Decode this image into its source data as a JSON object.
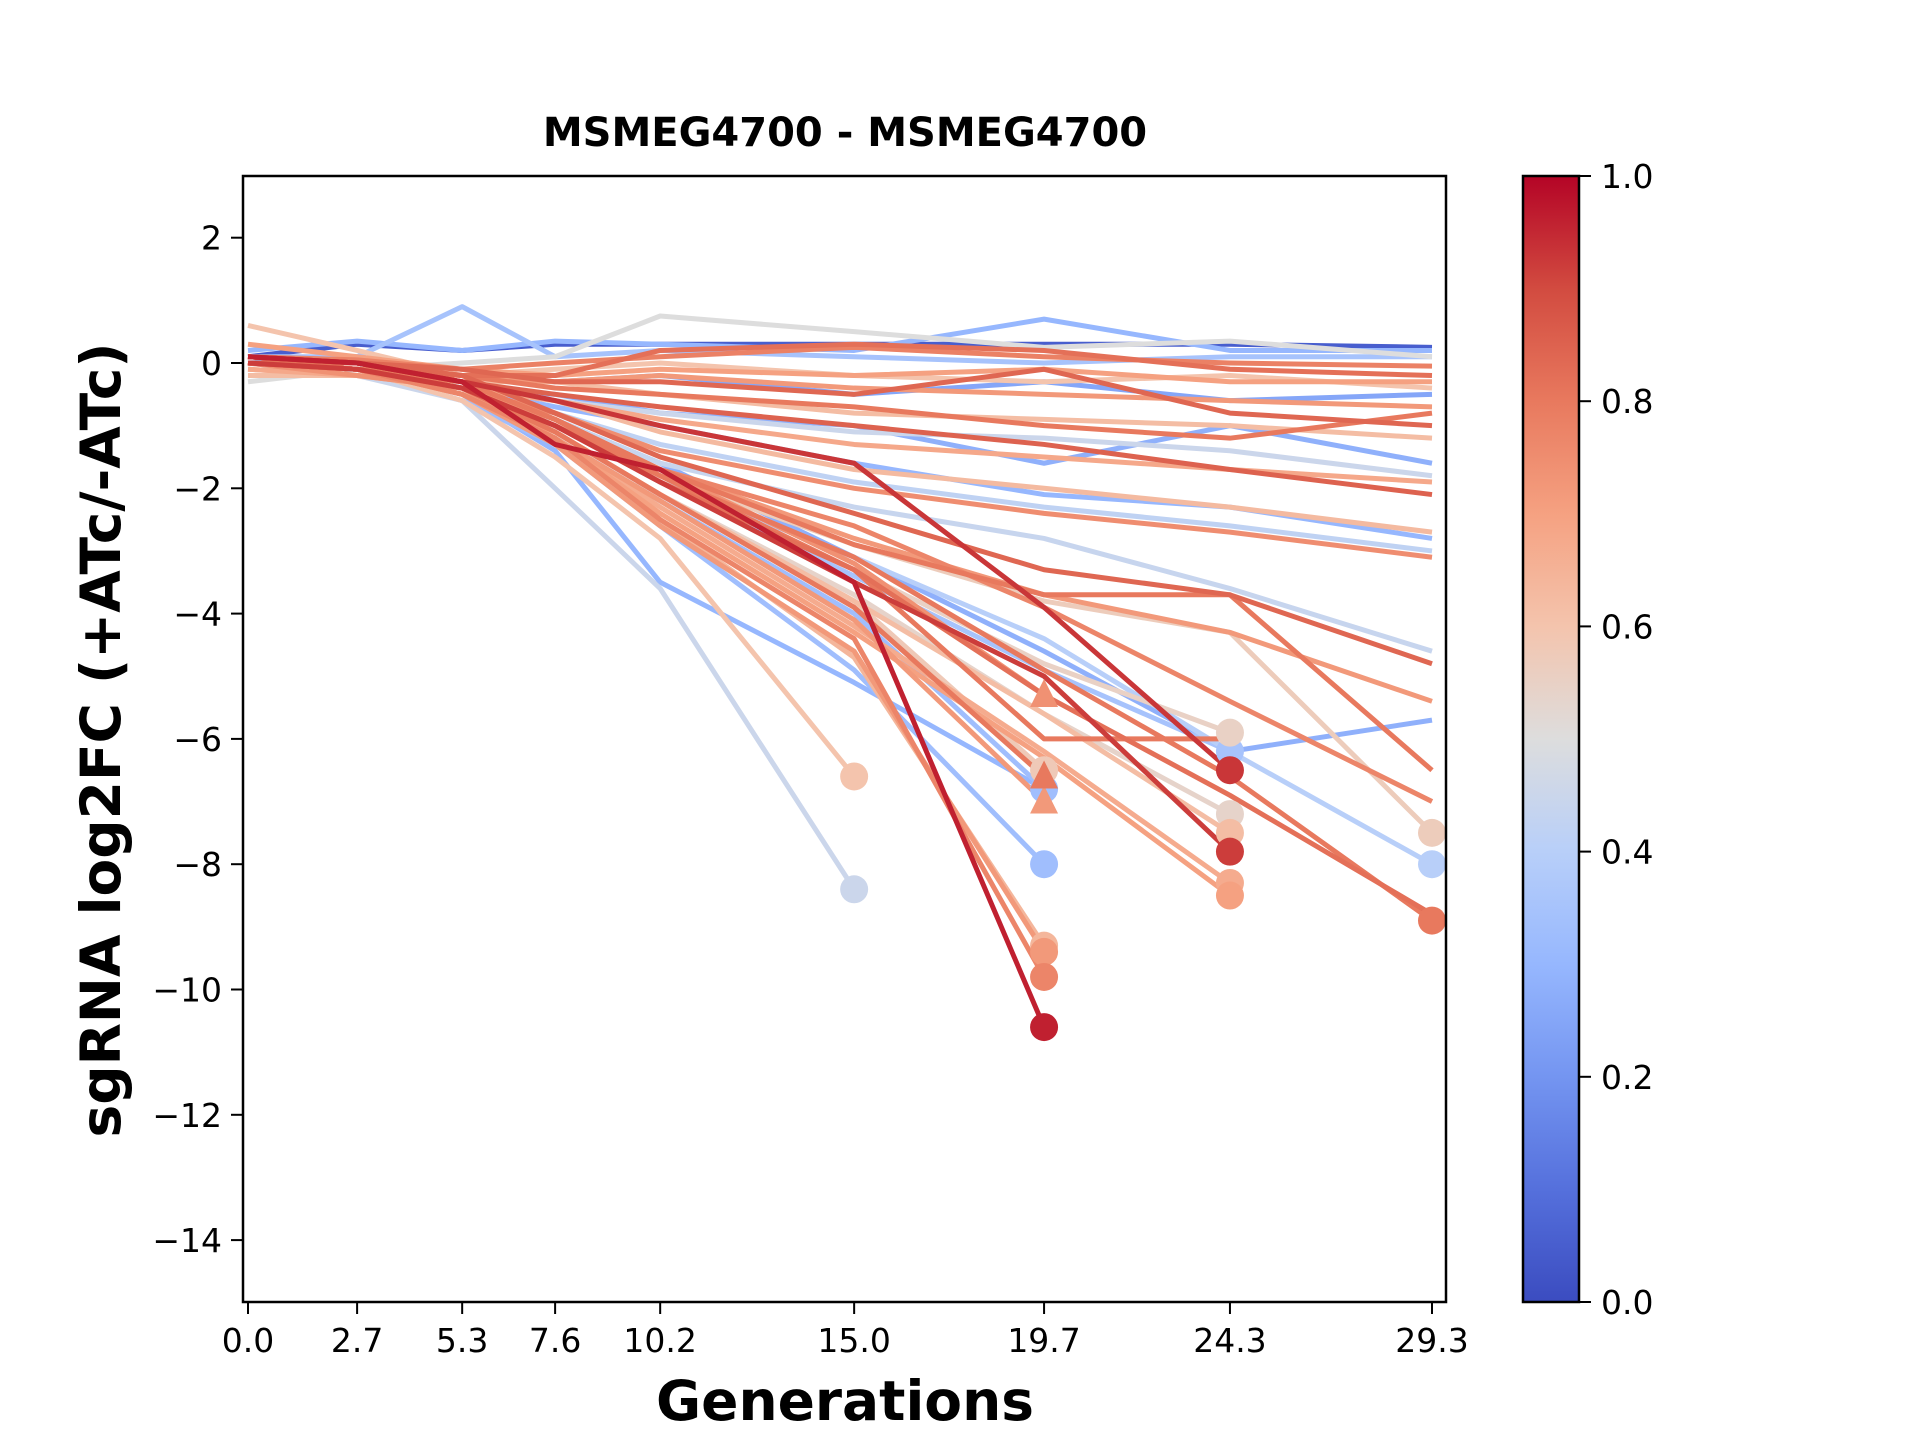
{
  "chart_data": {
    "type": "line",
    "title": "MSMEG4700 - MSMEG4700",
    "xlabel": "Generations",
    "ylabel": "sgRNA log2FC (+ATc/-ATc)",
    "x": [
      0.0,
      2.7,
      5.3,
      7.6,
      10.2,
      15.0,
      19.7,
      24.3,
      29.3
    ],
    "x_tick_labels": [
      "0.0",
      "2.7",
      "5.3",
      "7.6",
      "10.2",
      "15.0",
      "19.7",
      "24.3",
      "29.3"
    ],
    "ylim": [
      -15,
      3
    ],
    "y_ticks": [
      2,
      0,
      -2,
      -4,
      -6,
      -8,
      -10,
      -12,
      -14
    ],
    "y_tick_labels": [
      "2",
      "0",
      "−2",
      "−4",
      "−6",
      "−8",
      "−10",
      "−12",
      "−14"
    ],
    "grid": false,
    "colorbar": {
      "colormap": "coolwarm",
      "range": [
        0.0,
        1.0
      ],
      "ticks": [
        0.0,
        0.2,
        0.4,
        0.6,
        0.8,
        1.0
      ],
      "tick_labels": [
        "0.0",
        "0.2",
        "0.4",
        "0.6",
        "0.8",
        "1.0"
      ],
      "placement": "right"
    },
    "series": [
      {
        "c": 0.05,
        "values": [
          0.1,
          0.3,
          0.2,
          0.3,
          0.3,
          0.3,
          0.3,
          0.3,
          0.25
        ],
        "marker": null
      },
      {
        "c": 0.3,
        "values": [
          0.2,
          0.35,
          0.2,
          0.35,
          0.3,
          0.2,
          0.7,
          0.2,
          0.2
        ],
        "marker": null
      },
      {
        "c": 0.35,
        "values": [
          0.1,
          0.1,
          0.9,
          0.1,
          0.2,
          0.1,
          0.0,
          0.1,
          0.1
        ],
        "marker": null
      },
      {
        "c": 0.5,
        "values": [
          -0.3,
          -0.1,
          0.0,
          0.1,
          0.75,
          0.5,
          0.25,
          0.35,
          0.1
        ],
        "marker": null
      },
      {
        "c": 0.78,
        "values": [
          0.1,
          0.05,
          -0.1,
          0.0,
          0.1,
          0.25,
          0.1,
          0.0,
          -0.05
        ],
        "marker": null
      },
      {
        "c": 0.82,
        "values": [
          0.0,
          0.0,
          -0.2,
          -0.2,
          0.2,
          0.3,
          0.2,
          -0.1,
          -0.2
        ],
        "marker": null
      },
      {
        "c": 0.7,
        "values": [
          0.3,
          0.1,
          -0.1,
          -0.2,
          -0.1,
          -0.2,
          -0.1,
          -0.3,
          -0.3
        ],
        "marker": null
      },
      {
        "c": 0.6,
        "values": [
          0.6,
          0.2,
          -0.2,
          -0.1,
          0.0,
          -0.2,
          -0.3,
          -0.2,
          -0.4
        ],
        "marker": null
      },
      {
        "c": 0.25,
        "values": [
          0.0,
          0.1,
          -0.2,
          -0.3,
          -0.2,
          -0.5,
          -0.3,
          -0.6,
          -0.5
        ],
        "marker": null
      },
      {
        "c": 0.72,
        "values": [
          0.0,
          -0.1,
          -0.2,
          -0.3,
          -0.2,
          -0.4,
          -0.5,
          -0.6,
          -0.7
        ],
        "marker": null
      },
      {
        "c": 0.84,
        "values": [
          0.1,
          0.0,
          -0.1,
          -0.3,
          -0.3,
          -0.5,
          -0.1,
          -0.8,
          -1.0
        ],
        "marker": null
      },
      {
        "c": 0.8,
        "values": [
          0.0,
          -0.1,
          -0.2,
          -0.4,
          -0.5,
          -0.7,
          -1.0,
          -1.2,
          -0.8
        ],
        "marker": null
      },
      {
        "c": 0.62,
        "values": [
          -0.2,
          -0.2,
          -0.3,
          -0.3,
          -0.5,
          -0.8,
          -0.9,
          -1.0,
          -1.2
        ],
        "marker": null
      },
      {
        "c": 0.28,
        "values": [
          0.0,
          0.0,
          -0.4,
          -0.5,
          -0.8,
          -1.0,
          -1.6,
          -1.0,
          -1.6
        ],
        "marker": null
      },
      {
        "c": 0.45,
        "values": [
          0.0,
          -0.1,
          -0.3,
          -0.6,
          -0.8,
          -1.1,
          -1.2,
          -1.4,
          -1.8
        ],
        "marker": null
      },
      {
        "c": 0.68,
        "values": [
          -0.1,
          -0.2,
          -0.4,
          -0.6,
          -0.9,
          -1.3,
          -1.5,
          -1.7,
          -1.9
        ],
        "marker": null
      },
      {
        "c": 0.85,
        "values": [
          0.1,
          0.0,
          -0.3,
          -0.5,
          -0.7,
          -1.0,
          -1.3,
          -1.7,
          -2.1
        ],
        "marker": null
      },
      {
        "c": 0.3,
        "values": [
          0.0,
          -0.1,
          -0.4,
          -0.7,
          -1.0,
          -1.6,
          -2.1,
          -2.3,
          -2.8
        ],
        "marker": null
      },
      {
        "c": 0.63,
        "values": [
          -0.1,
          -0.2,
          -0.4,
          -0.6,
          -1.1,
          -1.7,
          -2.0,
          -2.3,
          -2.7
        ],
        "marker": null
      },
      {
        "c": 0.42,
        "values": [
          0.0,
          -0.1,
          -0.4,
          -0.8,
          -1.3,
          -1.9,
          -2.3,
          -2.6,
          -3.0
        ],
        "marker": null
      },
      {
        "c": 0.75,
        "values": [
          0.0,
          -0.1,
          -0.4,
          -0.8,
          -1.4,
          -2.0,
          -2.4,
          -2.7,
          -3.1
        ],
        "marker": null
      },
      {
        "c": 0.44,
        "values": [
          0.0,
          -0.1,
          -0.4,
          -0.9,
          -1.6,
          -2.3,
          -2.8,
          -3.6,
          -4.6
        ],
        "marker": null
      },
      {
        "c": 0.84,
        "values": [
          0.1,
          0.0,
          -0.2,
          -0.8,
          -1.5,
          -2.4,
          -3.3,
          -3.7,
          -4.8
        ],
        "marker": null
      },
      {
        "c": 0.72,
        "values": [
          0.1,
          0.0,
          -0.3,
          -0.9,
          -1.7,
          -2.8,
          -3.7,
          -4.3,
          -5.4
        ],
        "marker": null
      },
      {
        "c": 0.8,
        "values": [
          0.0,
          0.0,
          -0.3,
          -0.9,
          -1.7,
          -2.9,
          -3.7,
          -3.7,
          -6.5
        ],
        "marker": null
      },
      {
        "c": 0.28,
        "values": [
          0.0,
          -0.1,
          -0.3,
          -0.9,
          -1.6,
          -3.1,
          -4.6,
          -6.2,
          -5.7
        ],
        "marker": null
      },
      {
        "c": 0.77,
        "values": [
          0.0,
          -0.1,
          -0.3,
          -0.9,
          -1.7,
          -2.6,
          -3.9,
          -5.4,
          -7.0
        ],
        "marker": null
      },
      {
        "c": 0.57,
        "values": [
          0.0,
          -0.1,
          -0.4,
          -1.0,
          -1.8,
          -2.9,
          -3.8,
          -4.3,
          -7.5
        ],
        "marker": "circle"
      },
      {
        "c": 0.4,
        "values": [
          0.0,
          -0.1,
          -0.4,
          -1.0,
          -1.9,
          -3.1,
          -4.4,
          -6.2,
          -8.0
        ],
        "marker": "circle"
      },
      {
        "c": 0.8,
        "values": [
          0.0,
          -0.1,
          -0.3,
          -0.9,
          -1.8,
          -3.1,
          -4.9,
          -6.6,
          -8.9
        ],
        "marker": "circle"
      },
      {
        "c": 0.82,
        "values": [
          0.0,
          -0.1,
          -0.4,
          -1.0,
          -1.9,
          -3.3,
          -5.3,
          -6.9,
          -8.8
        ],
        "marker": null
      },
      {
        "c": 0.93,
        "values": [
          0.1,
          0.0,
          -0.3,
          -0.6,
          -1.0,
          -1.6,
          -3.9,
          -6.5,
          null
        ],
        "marker": "circle"
      },
      {
        "c": 0.55,
        "values": [
          0.0,
          -0.1,
          -0.4,
          -1.0,
          -1.9,
          -3.3,
          -4.8,
          -5.9,
          null
        ],
        "marker": "circle"
      },
      {
        "c": 0.35,
        "values": [
          0.0,
          -0.1,
          -0.4,
          -1.0,
          -1.9,
          -3.4,
          -4.9,
          -6.2,
          null
        ],
        "marker": "circle"
      },
      {
        "c": 0.54,
        "values": [
          0.0,
          -0.1,
          -0.5,
          -1.1,
          -2.1,
          -3.7,
          -5.6,
          -7.2,
          null
        ],
        "marker": "circle"
      },
      {
        "c": 0.92,
        "values": [
          0.0,
          -0.1,
          -0.4,
          -1.0,
          -1.9,
          -3.5,
          -5.0,
          -7.8,
          null
        ],
        "marker": "circle"
      },
      {
        "c": 0.62,
        "values": [
          0.0,
          -0.1,
          -0.5,
          -1.1,
          -2.1,
          -3.8,
          -5.6,
          -7.5,
          null
        ],
        "marker": "circle"
      },
      {
        "c": 0.67,
        "values": [
          0.0,
          -0.1,
          -0.5,
          -1.2,
          -2.3,
          -4.2,
          -6.2,
          -8.3,
          null
        ],
        "marker": "circle"
      },
      {
        "c": 0.7,
        "values": [
          0.0,
          -0.1,
          -0.5,
          -1.2,
          -2.4,
          -4.3,
          -6.3,
          -8.5,
          null
        ],
        "marker": "circle"
      },
      {
        "c": 0.74,
        "values": [
          0.0,
          -0.2,
          -0.4,
          -0.9,
          -1.7,
          -3.2,
          -5.3,
          null,
          null
        ],
        "marker": "triangle"
      },
      {
        "c": 0.8,
        "values": [
          0.0,
          -0.1,
          -0.4,
          -1.0,
          -1.8,
          -3.3,
          -6.0,
          -6.0,
          null
        ],
        "marker": null
      },
      {
        "c": 0.58,
        "values": [
          0.0,
          -0.1,
          -0.4,
          -1.1,
          -2.1,
          -3.8,
          -6.5,
          null,
          null
        ],
        "marker": "circle"
      },
      {
        "c": 0.8,
        "values": [
          0.0,
          -0.1,
          -0.4,
          -1.1,
          -2.1,
          -3.9,
          -6.6,
          null,
          null
        ],
        "marker": "triangle"
      },
      {
        "c": 0.33,
        "values": [
          0.0,
          -0.1,
          -0.4,
          -1.2,
          -2.2,
          -4.0,
          -6.8,
          null,
          null
        ],
        "marker": "circle"
      },
      {
        "c": 0.72,
        "values": [
          0.0,
          -0.1,
          -0.4,
          -1.2,
          -2.2,
          -4.1,
          -7.0,
          null,
          null
        ],
        "marker": "triangle"
      },
      {
        "c": 0.33,
        "values": [
          0.0,
          -0.1,
          -0.6,
          -1.3,
          -2.6,
          -4.9,
          -8.0,
          null,
          null
        ],
        "marker": "circle"
      },
      {
        "c": 0.64,
        "values": [
          0.0,
          -0.1,
          -0.4,
          -1.2,
          -2.5,
          -4.7,
          -9.3,
          null,
          null
        ],
        "marker": "circle"
      },
      {
        "c": 0.72,
        "values": [
          0.0,
          -0.1,
          -0.5,
          -1.3,
          -2.6,
          -4.6,
          -9.4,
          null,
          null
        ],
        "marker": "circle"
      },
      {
        "c": 0.77,
        "values": [
          0.0,
          -0.1,
          -0.5,
          -1.2,
          -2.5,
          -4.4,
          -9.8,
          null,
          null
        ],
        "marker": "circle"
      },
      {
        "c": 0.96,
        "values": [
          0.1,
          0.0,
          -0.3,
          -1.3,
          -1.7,
          -3.5,
          -10.6,
          null,
          null
        ],
        "marker": "circle"
      },
      {
        "c": 0.6,
        "values": [
          0.0,
          -0.1,
          -0.6,
          -1.5,
          -2.8,
          -6.6,
          null,
          null,
          null
        ],
        "marker": "circle"
      },
      {
        "c": 0.45,
        "values": [
          0.0,
          -0.2,
          -0.6,
          -2.0,
          -3.6,
          -8.4,
          null,
          null,
          null
        ],
        "marker": "circle"
      },
      {
        "c": 0.3,
        "values": [
          0.0,
          -0.1,
          -0.5,
          -1.4,
          -3.5,
          -5.1,
          -6.8,
          null,
          null
        ],
        "marker": null
      }
    ]
  }
}
